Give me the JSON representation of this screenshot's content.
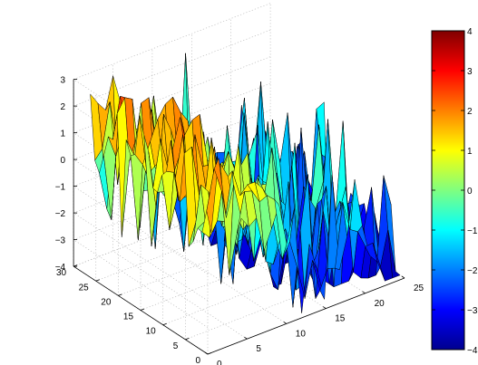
{
  "chart_data": {
    "type": "surface3d",
    "title": "",
    "xlabel": "",
    "ylabel": "",
    "zlabel": "",
    "colormap": "jet",
    "grid": true,
    "xlim": [
      0,
      25
    ],
    "ylim": [
      0,
      30
    ],
    "zlim": [
      -4,
      3
    ],
    "clim": [
      -4,
      4
    ],
    "x_ticks": [
      "0",
      "5",
      "10",
      "15",
      "20",
      "25"
    ],
    "y_ticks": [
      "0",
      "5",
      "10",
      "15",
      "20",
      "25",
      "30"
    ],
    "z_ticks": [
      "−4",
      "−3",
      "−2",
      "−1",
      "0",
      "1",
      "2",
      "3"
    ],
    "colorbar_ticks": [
      "−4",
      "−3",
      "−2",
      "−1",
      "0",
      "1",
      "2",
      "3",
      "4"
    ],
    "approximate_mean_height_by_x": [
      {
        "x": 1,
        "z": 1.2
      },
      {
        "x": 4,
        "z": 1.5
      },
      {
        "x": 7,
        "z": 0.5
      },
      {
        "x": 10,
        "z": -0.5
      },
      {
        "x": 13,
        "z": -2.5
      },
      {
        "x": 16,
        "z": -3.0
      },
      {
        "x": 19,
        "z": -2.8
      },
      {
        "x": 22,
        "z": -3.2
      },
      {
        "x": 25,
        "z": -3.5
      }
    ]
  }
}
